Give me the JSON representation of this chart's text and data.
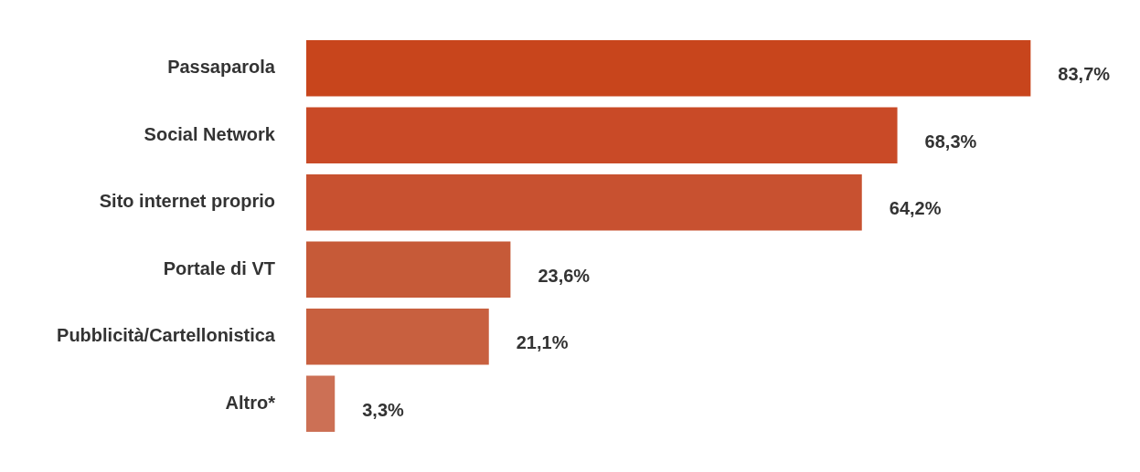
{
  "chart_data": {
    "type": "bar",
    "orientation": "horizontal",
    "categories": [
      "Passaparola",
      "Social Network",
      "Sito internet proprio",
      "Portale di VT",
      "Pubblicità/Cartellonistica",
      "Altro*"
    ],
    "values": [
      83.7,
      68.3,
      64.2,
      23.6,
      21.1,
      3.3
    ],
    "colors": [
      "#c8451c",
      "#c94a27",
      "#c85130",
      "#c65a38",
      "#c8603f",
      "#cc7055"
    ],
    "value_labels": [
      "83,7%",
      "68,3%",
      "64,2%",
      "23,6%",
      "21,1%",
      "3,3%"
    ],
    "tick_labels": "y",
    "grid": false,
    "legend": false
  }
}
